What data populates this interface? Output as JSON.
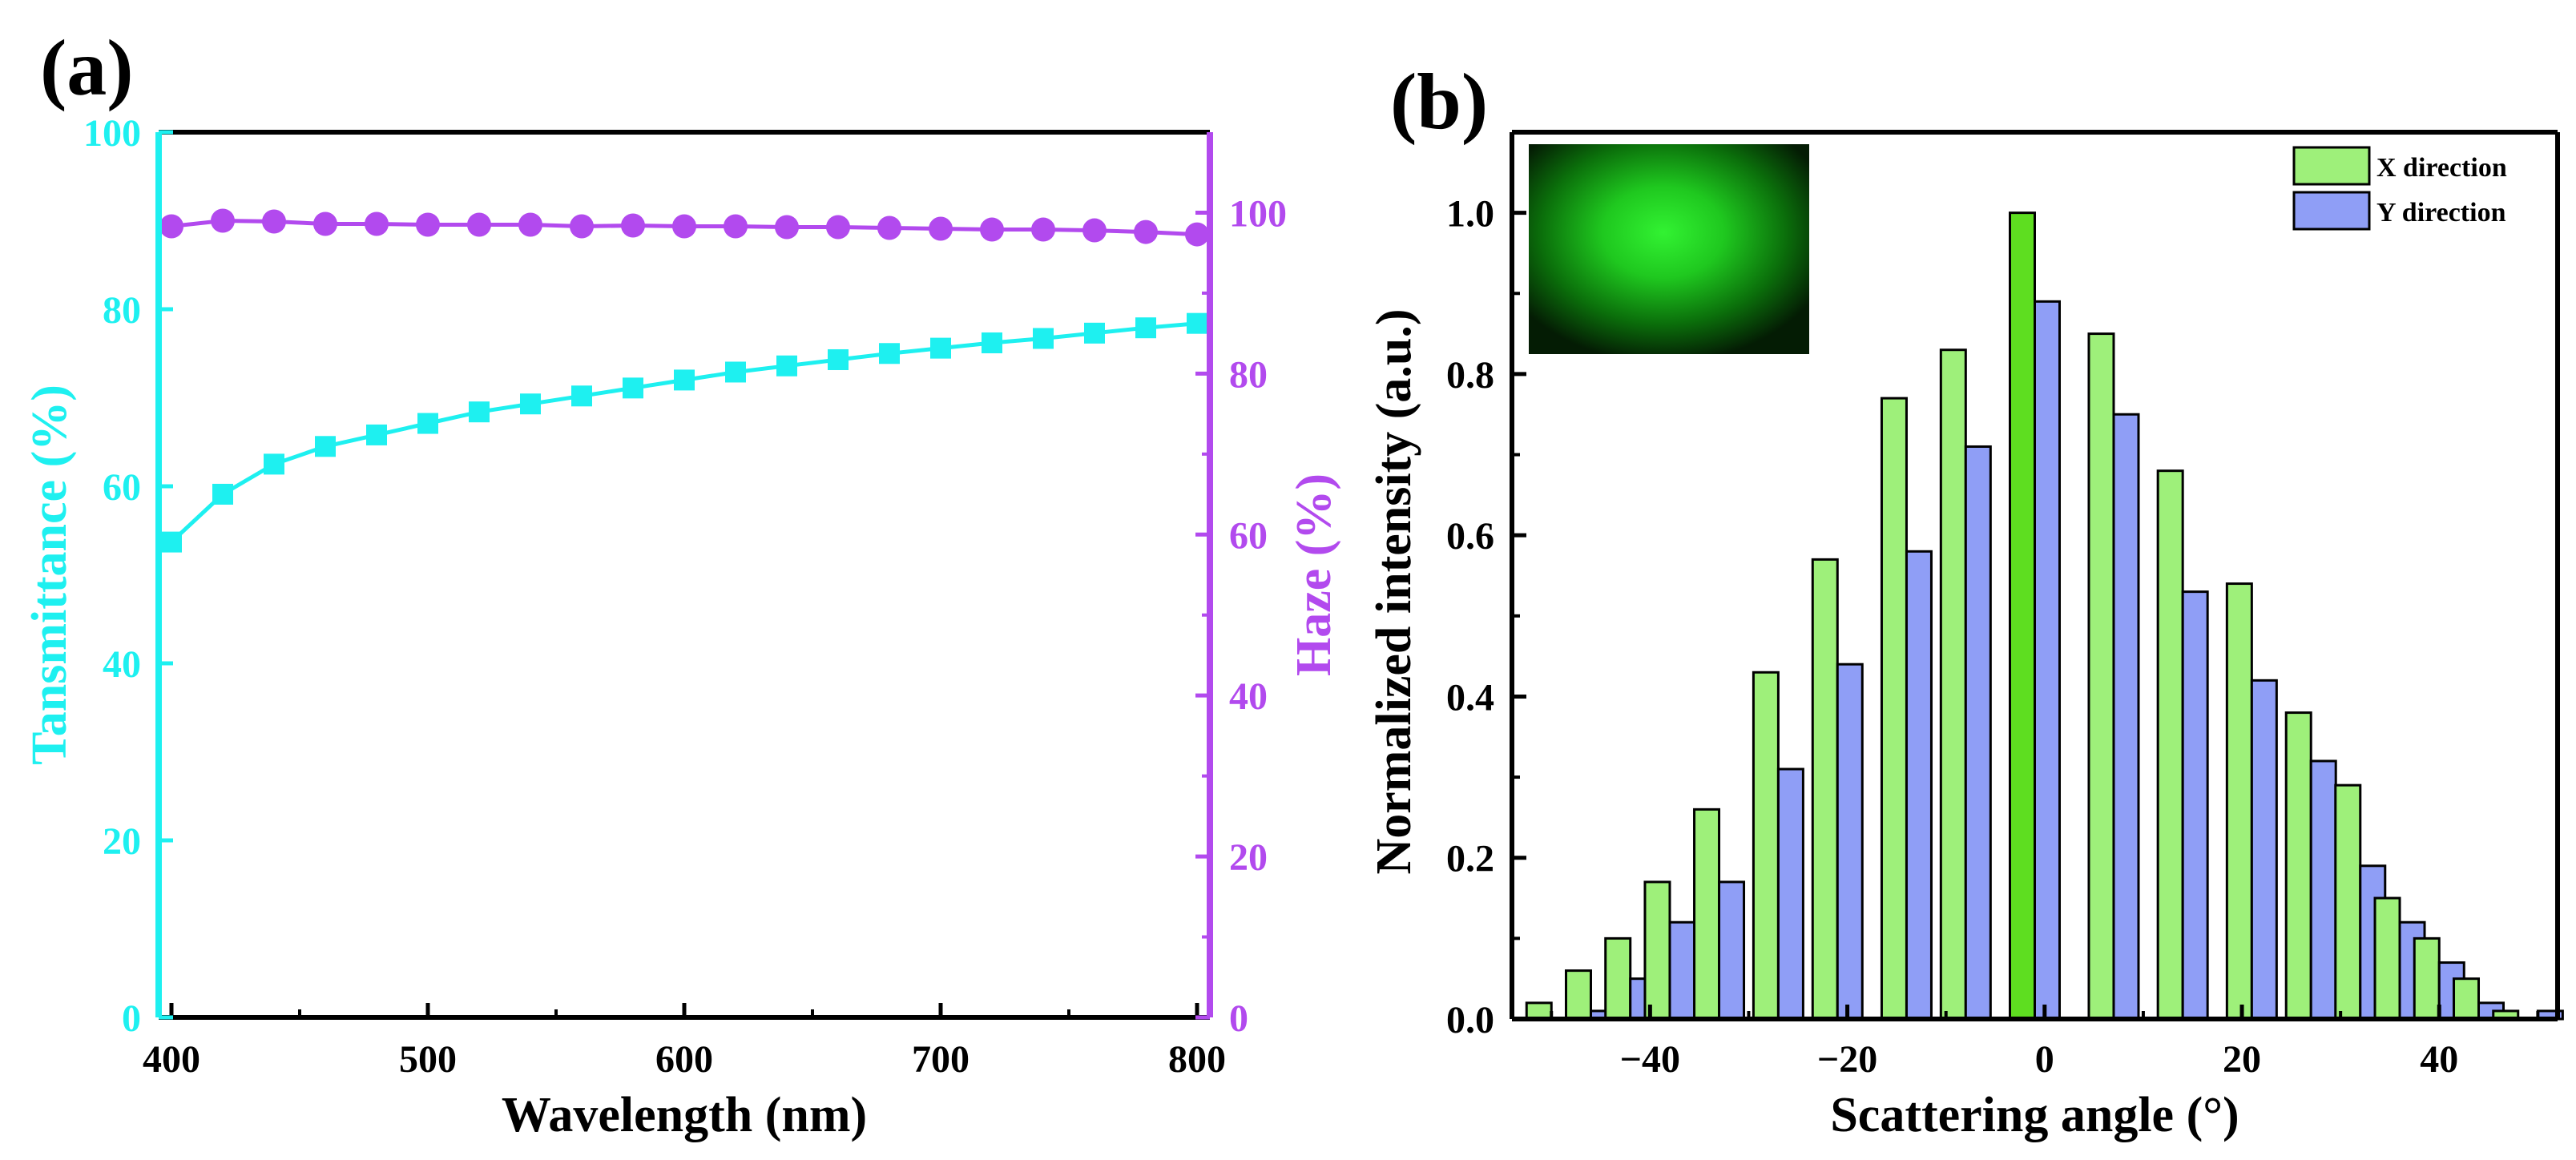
{
  "panels": {
    "a": {
      "label": "(a)"
    },
    "b": {
      "label": "(b)"
    }
  },
  "colors": {
    "transmittance": "#1ef0f0",
    "haze": "#b24aee",
    "x_direction": "#9ef07a",
    "x_direction_center": "#5ede20",
    "y_direction": "#8f9ef6",
    "axis": "#000000"
  },
  "chart_data": [
    {
      "id": "a",
      "type": "line",
      "title": "",
      "xlabel": "Wavelength (nm)",
      "xlim": [
        395,
        805
      ],
      "xticks": [
        400,
        500,
        600,
        700,
        800
      ],
      "ylabel_left": "Tansmittance (%)",
      "ylim_left": [
        0,
        100
      ],
      "yticks_left": [
        0,
        20,
        40,
        60,
        80,
        100
      ],
      "ylabel_right": "Haze (%)",
      "ylim_right": [
        0,
        110
      ],
      "yticks_right": [
        0,
        20,
        40,
        60,
        80,
        100
      ],
      "series": [
        {
          "name": "Transmittance",
          "axis": "left",
          "marker": "square",
          "x": [
            400,
            420,
            440,
            460,
            480,
            500,
            520,
            540,
            560,
            580,
            600,
            620,
            640,
            660,
            680,
            700,
            720,
            740,
            760,
            780,
            800
          ],
          "values": [
            53.7,
            59.1,
            62.5,
            64.5,
            65.8,
            67.1,
            68.4,
            69.3,
            70.2,
            71.1,
            72.0,
            72.9,
            73.6,
            74.3,
            75.0,
            75.6,
            76.2,
            76.7,
            77.3,
            77.9,
            78.4
          ]
        },
        {
          "name": "Haze",
          "axis": "right",
          "marker": "circle",
          "x": [
            400,
            420,
            440,
            460,
            480,
            500,
            520,
            540,
            560,
            580,
            600,
            620,
            640,
            660,
            680,
            700,
            720,
            740,
            760,
            780,
            800
          ],
          "values": [
            98.3,
            99.0,
            98.9,
            98.6,
            98.6,
            98.5,
            98.5,
            98.5,
            98.3,
            98.4,
            98.3,
            98.3,
            98.2,
            98.2,
            98.1,
            98.0,
            97.9,
            97.9,
            97.8,
            97.6,
            97.3
          ]
        }
      ]
    },
    {
      "id": "b",
      "type": "bar",
      "title": "",
      "xlabel": "Scattering angle (°)",
      "xlim": [
        -54,
        52
      ],
      "xticks": [
        -40,
        -20,
        0,
        20,
        40
      ],
      "ylabel": "Normalized intensity (a.u.)",
      "ylim": [
        0,
        1.1
      ],
      "yticks": [
        0.0,
        0.2,
        0.4,
        0.6,
        0.8,
        1.0
      ],
      "tick_labels_y": [
        "0.0",
        "0.2",
        "0.4",
        "0.6",
        "0.8",
        "1.0"
      ],
      "categories": [
        -50,
        -46,
        -42,
        -38,
        -33,
        -27,
        -21,
        -14,
        -8,
        -1,
        7,
        14,
        21,
        27,
        32,
        36,
        40,
        44,
        48,
        50
      ],
      "series": [
        {
          "name": "X direction",
          "values": [
            0.02,
            0.06,
            0.1,
            0.17,
            0.26,
            0.43,
            0.57,
            0.77,
            0.83,
            1.0,
            0.85,
            0.68,
            0.54,
            0.38,
            0.29,
            0.15,
            0.1,
            0.05,
            0.01,
            0.0
          ]
        },
        {
          "name": "Y direction",
          "values": [
            0.0,
            0.01,
            0.05,
            0.12,
            0.17,
            0.31,
            0.44,
            0.58,
            0.71,
            0.89,
            0.75,
            0.53,
            0.42,
            0.32,
            0.19,
            0.12,
            0.07,
            0.02,
            0.0,
            0.01
          ]
        }
      ],
      "legend": {
        "position": "top-right",
        "entries": [
          "X direction",
          "Y direction"
        ]
      },
      "inset": {
        "description_name": "scattering-pattern-photo",
        "position": "top-left"
      }
    }
  ]
}
